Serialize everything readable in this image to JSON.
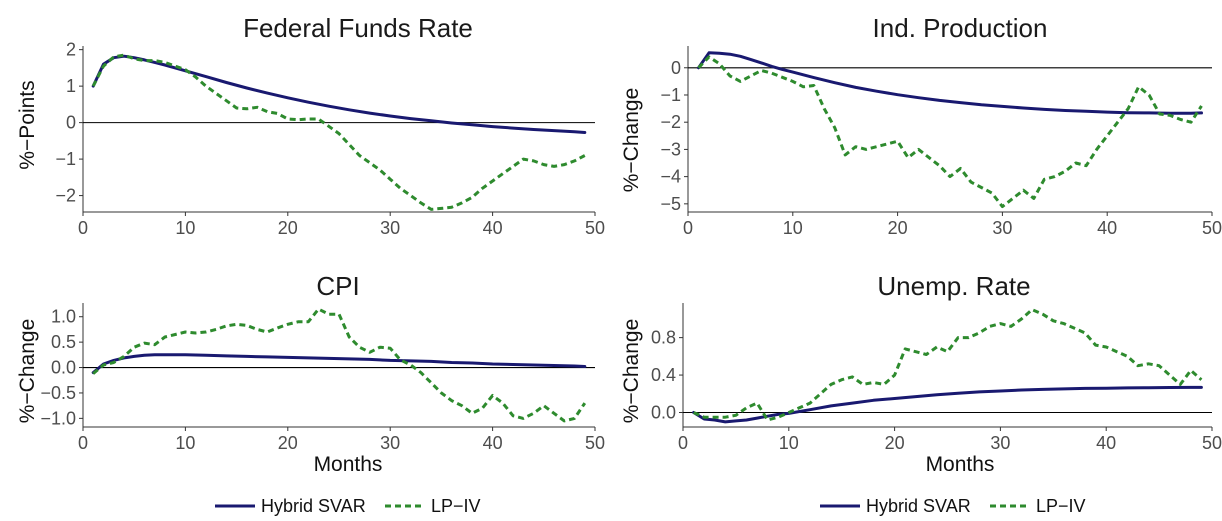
{
  "chart_data": [
    {
      "type": "line",
      "title": "Federal Funds Rate",
      "ylabel": "%−Points",
      "xlabel": "",
      "xlim": [
        0,
        50
      ],
      "ylim": [
        -2.45,
        2.1
      ],
      "xticks": [
        0,
        10,
        20,
        30,
        40,
        50
      ],
      "yticks": [
        -2,
        -1,
        0,
        1,
        2
      ],
      "ytick_labels": [
        "−2",
        "−1",
        "0",
        "1",
        "2"
      ],
      "zero_line": true,
      "series": [
        {
          "name": "Hybrid SVAR",
          "color": "#191970",
          "style": "solid",
          "x": [
            1,
            2,
            3,
            4,
            5,
            6,
            7,
            8,
            9,
            10,
            12,
            14,
            16,
            18,
            20,
            22,
            24,
            26,
            28,
            30,
            32,
            34,
            36,
            38,
            40,
            42,
            44,
            46,
            48,
            49
          ],
          "y": [
            1.0,
            1.6,
            1.78,
            1.82,
            1.78,
            1.72,
            1.65,
            1.58,
            1.5,
            1.42,
            1.26,
            1.1,
            0.95,
            0.81,
            0.68,
            0.56,
            0.45,
            0.35,
            0.26,
            0.18,
            0.11,
            0.05,
            -0.01,
            -0.06,
            -0.11,
            -0.15,
            -0.19,
            -0.22,
            -0.25,
            -0.27
          ]
        },
        {
          "name": "LP−IV",
          "color": "#2e8b2e",
          "style": "dashed",
          "x": [
            1,
            2,
            3,
            4,
            5,
            6,
            7,
            8,
            9,
            10,
            11,
            12,
            13,
            14,
            15,
            16,
            17,
            18,
            19,
            20,
            21,
            22,
            23,
            24,
            25,
            26,
            27,
            28,
            29,
            30,
            31,
            32,
            33,
            34,
            35,
            36,
            37,
            38,
            39,
            40,
            41,
            42,
            43,
            44,
            45,
            46,
            47,
            48,
            49
          ],
          "y": [
            1.0,
            1.55,
            1.8,
            1.85,
            1.75,
            1.7,
            1.7,
            1.65,
            1.55,
            1.45,
            1.25,
            1.0,
            0.8,
            0.6,
            0.4,
            0.38,
            0.42,
            0.3,
            0.25,
            0.1,
            0.08,
            0.1,
            0.1,
            -0.1,
            -0.3,
            -0.6,
            -0.9,
            -1.1,
            -1.3,
            -1.55,
            -1.8,
            -2.0,
            -2.2,
            -2.38,
            -2.35,
            -2.32,
            -2.2,
            -2.05,
            -1.8,
            -1.6,
            -1.4,
            -1.2,
            -1.0,
            -1.05,
            -1.15,
            -1.2,
            -1.15,
            -1.05,
            -0.9
          ]
        }
      ]
    },
    {
      "type": "line",
      "title": "Ind. Production",
      "ylabel": "%−Change",
      "xlabel": "",
      "xlim": [
        0,
        50
      ],
      "ylim": [
        -5.3,
        0.8
      ],
      "xticks": [
        0,
        10,
        20,
        30,
        40,
        50
      ],
      "yticks": [
        -5,
        -4,
        -3,
        -2,
        -1,
        0
      ],
      "ytick_labels": [
        "−5",
        "−4",
        "−3",
        "−2",
        "−1",
        "0"
      ],
      "zero_line": true,
      "series": [
        {
          "name": "Hybrid SVAR",
          "color": "#191970",
          "style": "solid",
          "x": [
            1,
            2,
            3,
            4,
            5,
            6,
            7,
            8,
            9,
            10,
            12,
            14,
            16,
            18,
            20,
            22,
            24,
            26,
            28,
            30,
            32,
            34,
            36,
            38,
            40,
            42,
            44,
            46,
            48,
            49
          ],
          "y": [
            0,
            0.55,
            0.53,
            0.5,
            0.42,
            0.3,
            0.18,
            0.05,
            -0.06,
            -0.16,
            -0.36,
            -0.55,
            -0.72,
            -0.86,
            -0.99,
            -1.1,
            -1.2,
            -1.28,
            -1.36,
            -1.42,
            -1.48,
            -1.53,
            -1.57,
            -1.6,
            -1.63,
            -1.65,
            -1.66,
            -1.67,
            -1.67,
            -1.66
          ]
        },
        {
          "name": "LP−IV",
          "color": "#2e8b2e",
          "style": "dashed",
          "x": [
            1,
            2,
            3,
            4,
            5,
            6,
            7,
            8,
            9,
            10,
            11,
            12,
            13,
            14,
            15,
            16,
            17,
            18,
            19,
            20,
            21,
            22,
            23,
            24,
            25,
            26,
            27,
            28,
            29,
            30,
            31,
            32,
            33,
            34,
            35,
            36,
            37,
            38,
            39,
            40,
            41,
            42,
            43,
            44,
            45,
            46,
            47,
            48,
            49
          ],
          "y": [
            0,
            0.4,
            0.15,
            -0.3,
            -0.5,
            -0.3,
            -0.1,
            -0.2,
            -0.35,
            -0.5,
            -0.7,
            -0.65,
            -1.5,
            -2.2,
            -3.2,
            -2.9,
            -3.0,
            -2.9,
            -2.8,
            -2.7,
            -3.3,
            -3.0,
            -3.3,
            -3.6,
            -4.0,
            -3.7,
            -4.2,
            -4.4,
            -4.6,
            -5.1,
            -4.8,
            -4.5,
            -4.8,
            -4.1,
            -4.0,
            -3.8,
            -3.5,
            -3.6,
            -3.0,
            -2.5,
            -2.0,
            -1.5,
            -0.7,
            -1.0,
            -1.7,
            -1.75,
            -1.9,
            -2.0,
            -1.4
          ]
        }
      ]
    },
    {
      "type": "line",
      "title": "CPI",
      "ylabel": "%−Change",
      "xlabel": "Months",
      "xlim": [
        0,
        50
      ],
      "ylim": [
        -1.17,
        1.27
      ],
      "xticks": [
        0,
        10,
        20,
        30,
        40,
        50
      ],
      "yticks": [
        -1.0,
        -0.5,
        0.0,
        0.5,
        1.0
      ],
      "ytick_labels": [
        "−1.0",
        "−0.5",
        "0.0",
        "0.5",
        "1.0"
      ],
      "zero_line": true,
      "series": [
        {
          "name": "Hybrid SVAR",
          "color": "#191970",
          "style": "solid",
          "x": [
            1,
            2,
            3,
            4,
            5,
            6,
            7,
            8,
            9,
            10,
            12,
            14,
            16,
            18,
            20,
            22,
            24,
            26,
            28,
            30,
            32,
            34,
            36,
            38,
            40,
            42,
            44,
            46,
            48,
            49
          ],
          "y": [
            -0.1,
            0.07,
            0.14,
            0.19,
            0.22,
            0.24,
            0.25,
            0.25,
            0.25,
            0.25,
            0.24,
            0.23,
            0.22,
            0.21,
            0.2,
            0.19,
            0.18,
            0.17,
            0.16,
            0.14,
            0.13,
            0.12,
            0.1,
            0.09,
            0.07,
            0.06,
            0.05,
            0.04,
            0.03,
            0.02
          ]
        },
        {
          "name": "LP−IV",
          "color": "#2e8b2e",
          "style": "dashed",
          "x": [
            1,
            2,
            3,
            4,
            5,
            6,
            7,
            8,
            9,
            10,
            11,
            12,
            13,
            14,
            15,
            16,
            17,
            18,
            19,
            20,
            21,
            22,
            23,
            24,
            25,
            26,
            27,
            28,
            29,
            30,
            31,
            32,
            33,
            34,
            35,
            36,
            37,
            38,
            39,
            40,
            41,
            42,
            43,
            44,
            45,
            46,
            47,
            48,
            49
          ],
          "y": [
            -0.12,
            0.05,
            0.1,
            0.22,
            0.4,
            0.48,
            0.45,
            0.6,
            0.65,
            0.7,
            0.68,
            0.7,
            0.75,
            0.82,
            0.85,
            0.83,
            0.75,
            0.7,
            0.78,
            0.85,
            0.9,
            0.9,
            1.15,
            1.05,
            1.05,
            0.6,
            0.4,
            0.3,
            0.4,
            0.38,
            0.15,
            0.05,
            -0.1,
            -0.3,
            -0.5,
            -0.65,
            -0.75,
            -0.9,
            -0.8,
            -0.55,
            -0.7,
            -0.95,
            -1.0,
            -0.9,
            -0.75,
            -0.9,
            -1.05,
            -1.0,
            -0.7
          ]
        }
      ]
    },
    {
      "type": "line",
      "title": "Unemp. Rate",
      "ylabel": "%−Change",
      "xlabel": "Months",
      "xlim": [
        0,
        50
      ],
      "ylim": [
        -0.155,
        1.17
      ],
      "xticks": [
        0,
        10,
        20,
        30,
        40,
        50
      ],
      "yticks": [
        0.0,
        0.4,
        0.8
      ],
      "ytick_labels": [
        "0.0",
        "0.4",
        "0.8"
      ],
      "zero_line": true,
      "series": [
        {
          "name": "Hybrid SVAR",
          "color": "#191970",
          "style": "solid",
          "x": [
            1,
            2,
            3,
            4,
            5,
            6,
            7,
            8,
            9,
            10,
            12,
            14,
            16,
            18,
            20,
            22,
            24,
            26,
            28,
            30,
            32,
            34,
            36,
            38,
            40,
            42,
            44,
            46,
            48,
            49
          ],
          "y": [
            0.0,
            -0.07,
            -0.08,
            -0.1,
            -0.09,
            -0.08,
            -0.06,
            -0.04,
            -0.02,
            -0.01,
            0.03,
            0.07,
            0.1,
            0.13,
            0.15,
            0.17,
            0.19,
            0.205,
            0.22,
            0.23,
            0.24,
            0.247,
            0.252,
            0.257,
            0.26,
            0.263,
            0.265,
            0.267,
            0.268,
            0.268
          ]
        },
        {
          "name": "LP−IV",
          "color": "#2e8b2e",
          "style": "dashed",
          "x": [
            1,
            2,
            3,
            4,
            5,
            6,
            7,
            8,
            9,
            10,
            11,
            12,
            13,
            14,
            15,
            16,
            17,
            18,
            19,
            20,
            21,
            22,
            23,
            24,
            25,
            26,
            27,
            28,
            29,
            30,
            31,
            32,
            33,
            34,
            35,
            36,
            37,
            38,
            39,
            40,
            41,
            42,
            43,
            44,
            45,
            46,
            47,
            48,
            49
          ],
          "y": [
            0.0,
            -0.05,
            -0.05,
            -0.05,
            -0.03,
            0.05,
            0.1,
            -0.08,
            -0.05,
            0.0,
            0.05,
            0.1,
            0.2,
            0.3,
            0.35,
            0.38,
            0.3,
            0.32,
            0.3,
            0.4,
            0.68,
            0.65,
            0.62,
            0.7,
            0.65,
            0.8,
            0.8,
            0.85,
            0.92,
            0.95,
            0.92,
            1.0,
            1.1,
            1.05,
            0.98,
            0.95,
            0.9,
            0.85,
            0.72,
            0.7,
            0.65,
            0.6,
            0.5,
            0.52,
            0.5,
            0.4,
            0.3,
            0.45,
            0.35
          ]
        }
      ]
    }
  ],
  "legends": [
    {
      "items": [
        {
          "label": "Hybrid SVAR",
          "color": "#191970",
          "style": "solid"
        },
        {
          "label": "LP−IV",
          "color": "#2e8b2e",
          "style": "dashed"
        }
      ]
    },
    {
      "items": [
        {
          "label": "Hybrid SVAR",
          "color": "#191970",
          "style": "solid"
        },
        {
          "label": "LP−IV",
          "color": "#2e8b2e",
          "style": "dashed"
        }
      ]
    }
  ]
}
